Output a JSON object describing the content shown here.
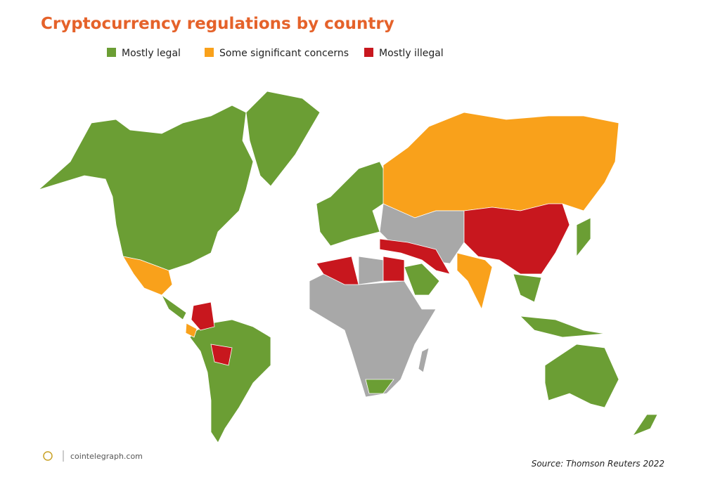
{
  "title": "Cryptocurrency regulations by country",
  "legend": [
    {
      "label": "Mostly legal",
      "color": "#6b9e34"
    },
    {
      "label": "Some significant concerns",
      "color": "#f9a11b"
    },
    {
      "label": "Mostly illegal",
      "color": "#c8171e"
    }
  ],
  "source": "Source: Thomson Reuters 2022",
  "logo": "cointelegraph.com"
}
